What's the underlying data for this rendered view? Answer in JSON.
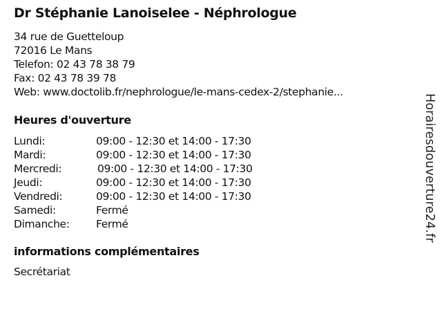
{
  "title": "Dr Stéphanie Lanoiselee - Néphrologue",
  "address": {
    "street": "34 rue de Guetteloup",
    "city": "72016 Le Mans",
    "phone": "Telefon: 02 43 78 38 79",
    "fax": "Fax: 02 43 78 39 78",
    "web": "Web: www.doctolib.fr/nephrologue/le-mans-cedex-2/stephanie..."
  },
  "hours_heading": "Heures d'ouverture",
  "hours": [
    {
      "day": "Lundi:",
      "time": "09:00 - 12:30 et 14:00 - 17:30"
    },
    {
      "day": "Mardi:",
      "time": "09:00 - 12:30 et 14:00 - 17:30"
    },
    {
      "day": "Mercredi:",
      "time": "09:00 - 12:30 et 14:00 - 17:30"
    },
    {
      "day": "Jeudi:",
      "time": "09:00 - 12:30 et 14:00 - 17:30"
    },
    {
      "day": "Vendredi:",
      "time": "09:00 - 12:30 et 14:00 - 17:30"
    },
    {
      "day": "Samedi:",
      "time": "Fermé"
    },
    {
      "day": "Dimanche:",
      "time": "Fermé"
    }
  ],
  "extra_heading": "informations complémentaires",
  "extra_text": "Secrétariat",
  "watermark": "Horairesdouverture24.fr"
}
